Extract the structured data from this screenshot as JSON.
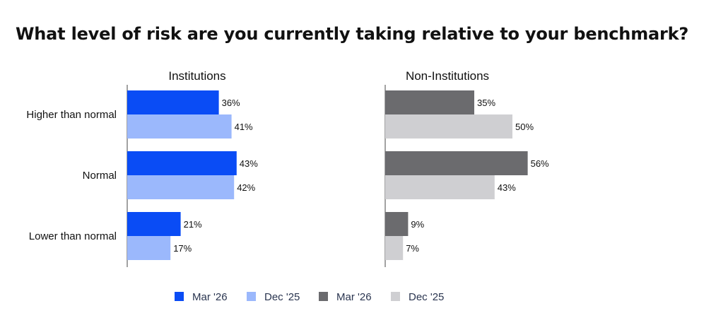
{
  "chart_data": {
    "type": "bar",
    "orientation": "horizontal",
    "title": "What level of risk are you currently taking relative to your benchmark?",
    "categories": [
      "Higher than normal",
      "Normal",
      "Lower than normal"
    ],
    "panels": [
      {
        "name": "Institutions",
        "series": [
          {
            "name": "Mar '26",
            "color": "#0a4cf5",
            "values": [
              36,
              43,
              21
            ]
          },
          {
            "name": "Dec '25",
            "color": "#9bb8fc",
            "values": [
              41,
              42,
              17
            ]
          }
        ]
      },
      {
        "name": "Non-Institutions",
        "series": [
          {
            "name": "Mar '26",
            "color": "#6b6b6e",
            "values": [
              35,
              56,
              9
            ]
          },
          {
            "name": "Dec '25",
            "color": "#cfcfd2",
            "values": [
              50,
              43,
              7
            ]
          }
        ]
      }
    ],
    "value_suffix": "%",
    "legend": [
      {
        "name": "Mar '26",
        "color": "#0a4cf5"
      },
      {
        "name": "Dec '25",
        "color": "#9bb8fc"
      },
      {
        "name": "Mar '26",
        "color": "#6b6b6e"
      },
      {
        "name": "Dec '25",
        "color": "#cfcfd2"
      }
    ],
    "legend_position": "bottom",
    "grid": false
  }
}
